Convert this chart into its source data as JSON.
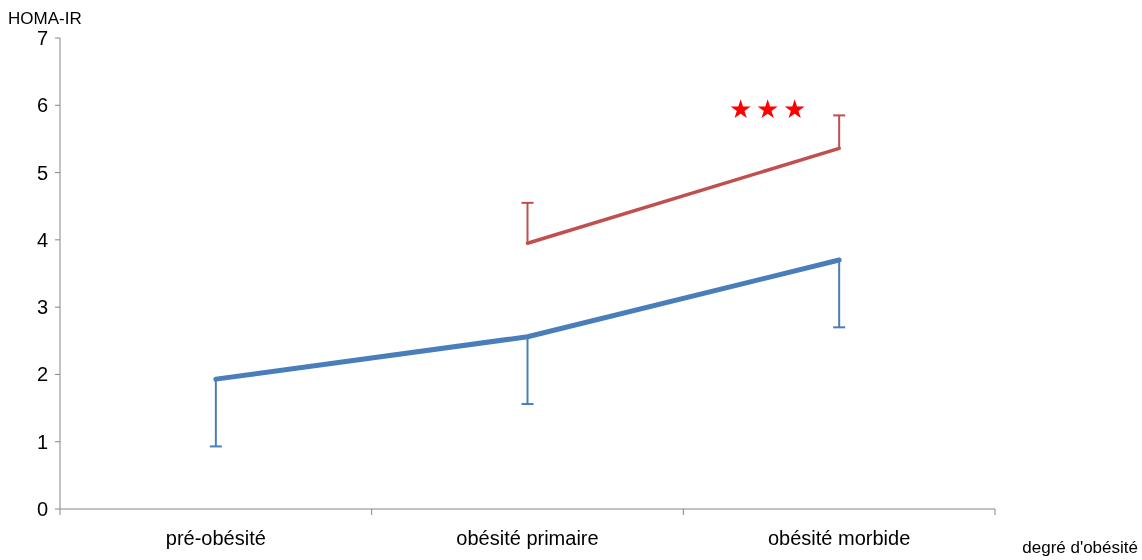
{
  "chart_data": {
    "type": "line",
    "xlabel": "degré d'obésité",
    "ylabel": "HOMA-IR",
    "categories": [
      "pré-obésité",
      "obésité primaire",
      "obésité morbide"
    ],
    "ylim": [
      0,
      7
    ],
    "yticks": [
      0,
      1,
      2,
      3,
      4,
      5,
      6,
      7
    ],
    "grid": false,
    "marker": "none",
    "series": [
      {
        "color": "#4a7ebb",
        "values": [
          1.93,
          2.56,
          3.7
        ],
        "errors": [
          [
            0.93,
            1.93
          ],
          [
            1.56,
            2.56
          ],
          [
            2.7,
            3.7
          ]
        ]
      },
      {
        "color": "#c0504d",
        "values": [
          null,
          3.95,
          5.36
        ],
        "errors": [
          null,
          [
            3.95,
            4.55
          ],
          [
            5.36,
            5.85
          ]
        ]
      }
    ],
    "annotations": [
      "★★★"
    ]
  }
}
